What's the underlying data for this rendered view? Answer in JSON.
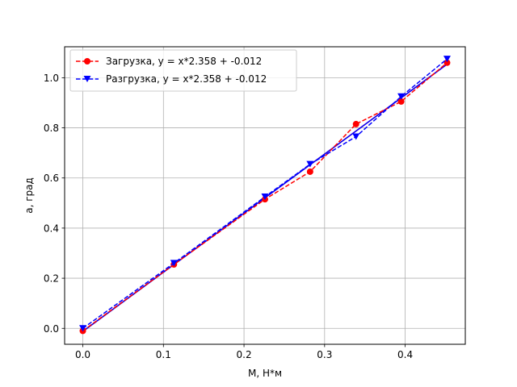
{
  "chart_data": {
    "type": "line",
    "title": "",
    "xlabel": "M, Н*м",
    "ylabel": "a, град",
    "xlim": [
      -0.0226,
      0.4746
    ],
    "ylim": [
      -0.0635,
      1.1235
    ],
    "xticks": [
      0.0,
      0.1,
      0.2,
      0.3,
      0.4
    ],
    "xtick_labels": [
      "0.0",
      "0.1",
      "0.2",
      "0.3",
      "0.4"
    ],
    "yticks": [
      0.0,
      0.2,
      0.4,
      0.6,
      0.8,
      1.0
    ],
    "ytick_labels": [
      "0.0",
      "0.2",
      "0.4",
      "0.6",
      "0.8",
      "1.0"
    ],
    "grid": true,
    "legend_position": "upper-left",
    "series": [
      {
        "name": "Загрузка, y = x*2.358 + -0.012",
        "color": "#ff0000",
        "marker": "circle",
        "line_style": "dashed",
        "x": [
          0.0,
          0.113,
          0.226,
          0.282,
          0.339,
          0.395,
          0.452
        ],
        "y": [
          -0.01,
          0.255,
          0.515,
          0.625,
          0.815,
          0.905,
          1.06
        ]
      },
      {
        "name": "Разгрузка, y = x*2.358 + -0.012",
        "color": "#0000ff",
        "marker": "triangle-down",
        "line_style": "dashed",
        "x": [
          0.0,
          0.113,
          0.226,
          0.282,
          0.339,
          0.395,
          0.452
        ],
        "y": [
          0.0,
          0.26,
          0.525,
          0.655,
          0.765,
          0.925,
          1.075
        ]
      }
    ],
    "fit_lines": [
      {
        "series": "Загрузка, y = x*2.358 + -0.012",
        "color": "#ff0000",
        "slope": 2.358,
        "intercept": -0.012,
        "x_range": [
          0.0,
          0.452
        ]
      },
      {
        "series": "Разгрузка, y = x*2.358 + -0.012",
        "color": "#0000ff",
        "slope": 2.358,
        "intercept": -0.012,
        "x_range": [
          0.0,
          0.452
        ]
      }
    ]
  }
}
